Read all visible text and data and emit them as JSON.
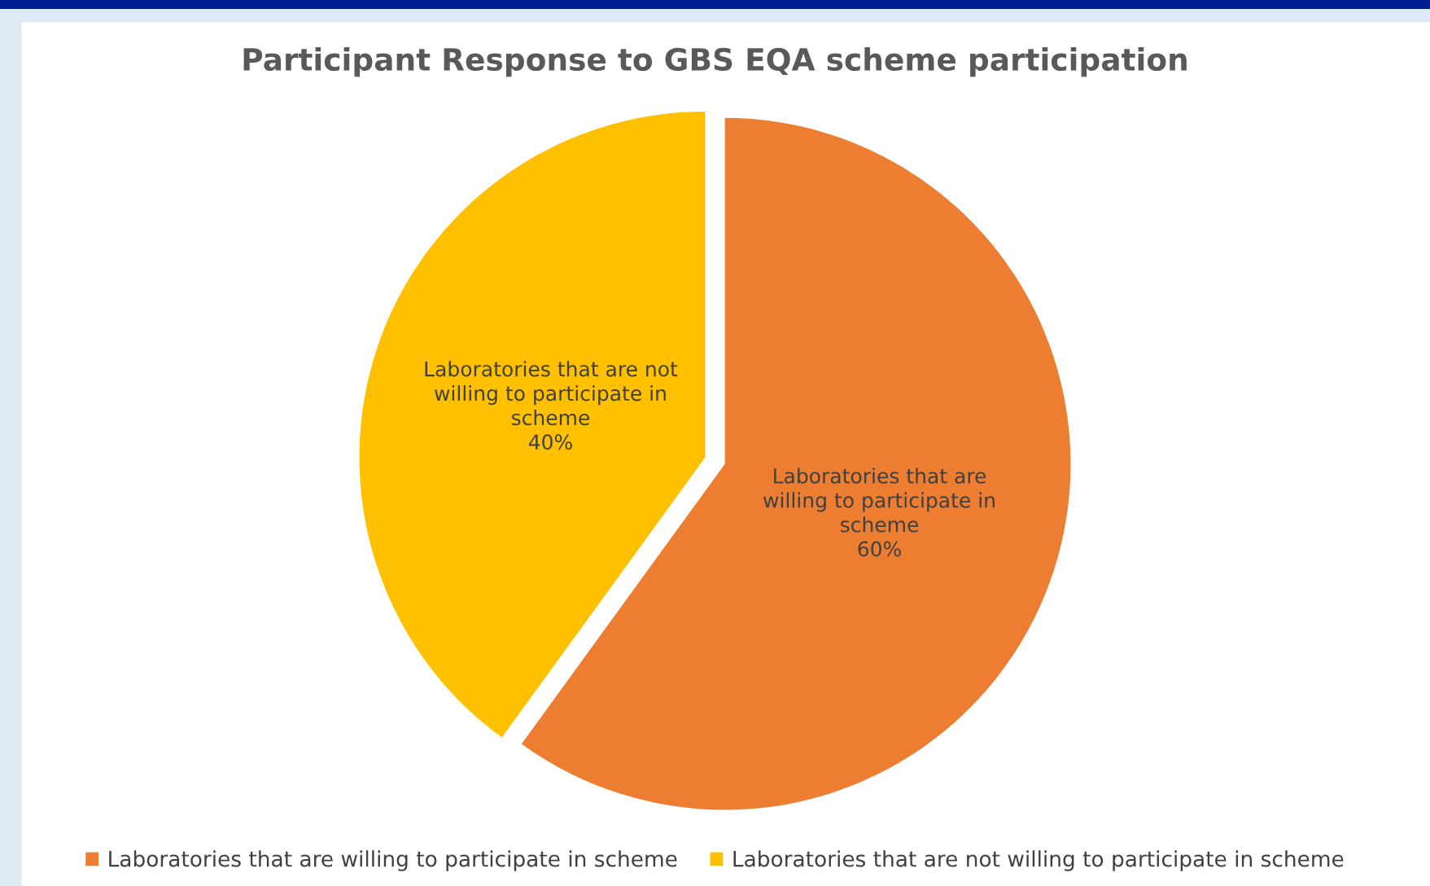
{
  "chart_data": {
    "type": "pie",
    "title": "Participant Response to GBS EQA scheme participation",
    "categories": [
      "Laboratories that are willing to participate in scheme",
      "Laboratories that are not willing to participate in scheme"
    ],
    "values": [
      60,
      40
    ],
    "colors": [
      "#ed7d31",
      "#ffc000"
    ],
    "value_labels": [
      "60%",
      "40%"
    ],
    "legend": "bottom"
  }
}
